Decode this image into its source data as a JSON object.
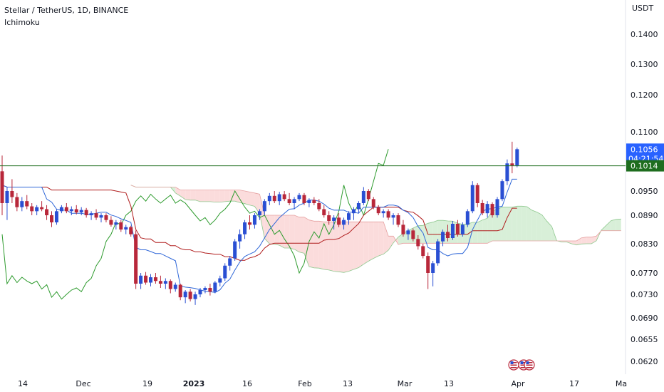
{
  "header": {
    "symbol_line": "Stellar / TetherUS, 1D, BINANCE",
    "indicator": "Ichimoku"
  },
  "colors": {
    "up": "#2a4fd3",
    "down": "#b8273a",
    "tenkan": "#2f67d8",
    "kijun": "#b01c1c",
    "chikou": "#2e9b2e",
    "cloud_bull": "#d8efd8",
    "cloud_bear": "#fbdcdc",
    "hline": "#1e6d1e",
    "current_box": "#2962ff",
    "level_box": "#1e6d1e"
  },
  "chart_data": {
    "type": "candlestick",
    "currency_label": "USDT",
    "y_ticks": [
      "0.1400",
      "0.1300",
      "0.1200",
      "0.1100",
      "0.0950",
      "0.0890",
      "0.0830",
      "0.0770",
      "0.0730",
      "0.0690",
      "0.0655",
      "0.0620"
    ],
    "x_ticks": [
      {
        "label": "14",
        "bold": false
      },
      {
        "label": "Dec",
        "bold": false
      },
      {
        "label": "19",
        "bold": false
      },
      {
        "label": "2023",
        "bold": true
      },
      {
        "label": "16",
        "bold": false
      },
      {
        "label": "Feb",
        "bold": false
      },
      {
        "label": "13",
        "bold": false
      },
      {
        "label": "Mar",
        "bold": false
      },
      {
        "label": "13",
        "bold": false
      },
      {
        "label": "Apr",
        "bold": false
      },
      {
        "label": "17",
        "bold": false
      },
      {
        "label": "Ma",
        "bold": false
      }
    ],
    "current_price": "0.1056",
    "countdown": "04:21:54",
    "level_price": "0.1014",
    "candles": [
      [
        0.1,
        0.104,
        0.089,
        0.092
      ],
      [
        0.092,
        0.096,
        0.088,
        0.095
      ],
      [
        0.095,
        0.098,
        0.092,
        0.0935
      ],
      [
        0.0935,
        0.0945,
        0.09,
        0.091
      ],
      [
        0.091,
        0.0935,
        0.09,
        0.0925
      ],
      [
        0.0925,
        0.094,
        0.0905,
        0.0912
      ],
      [
        0.0912,
        0.092,
        0.089,
        0.09
      ],
      [
        0.09,
        0.0915,
        0.089,
        0.091
      ],
      [
        0.091,
        0.0925,
        0.09,
        0.0905
      ],
      [
        0.0905,
        0.0915,
        0.088,
        0.089
      ],
      [
        0.089,
        0.09,
        0.0865,
        0.0875
      ],
      [
        0.0875,
        0.0905,
        0.087,
        0.09
      ],
      [
        0.09,
        0.0915,
        0.0895,
        0.091
      ],
      [
        0.091,
        0.092,
        0.0895,
        0.09
      ],
      [
        0.09,
        0.0912,
        0.089,
        0.0905
      ],
      [
        0.0905,
        0.0915,
        0.0892,
        0.0897
      ],
      [
        0.0897,
        0.091,
        0.089,
        0.0903
      ],
      [
        0.0903,
        0.0908,
        0.0885,
        0.089
      ],
      [
        0.089,
        0.09,
        0.088,
        0.0895
      ],
      [
        0.0895,
        0.0905,
        0.088,
        0.0885
      ],
      [
        0.0885,
        0.0895,
        0.0875,
        0.089
      ],
      [
        0.089,
        0.0895,
        0.0875,
        0.088
      ],
      [
        0.088,
        0.0888,
        0.0866,
        0.087
      ],
      [
        0.087,
        0.088,
        0.086,
        0.0875
      ],
      [
        0.0875,
        0.088,
        0.0855,
        0.086
      ],
      [
        0.086,
        0.087,
        0.085,
        0.0865
      ],
      [
        0.0865,
        0.0868,
        0.0845,
        0.085
      ],
      [
        0.085,
        0.0858,
        0.074,
        0.075
      ],
      [
        0.075,
        0.077,
        0.074,
        0.0765
      ],
      [
        0.0765,
        0.0772,
        0.0748,
        0.0752
      ],
      [
        0.0752,
        0.0768,
        0.0745,
        0.0762
      ],
      [
        0.0762,
        0.077,
        0.075,
        0.0755
      ],
      [
        0.0755,
        0.0765,
        0.0742,
        0.075
      ],
      [
        0.075,
        0.076,
        0.074,
        0.0755
      ],
      [
        0.0755,
        0.0758,
        0.0732,
        0.074
      ],
      [
        0.074,
        0.0752,
        0.0735,
        0.0748
      ],
      [
        0.0748,
        0.075,
        0.072,
        0.0725
      ],
      [
        0.0725,
        0.0738,
        0.0715,
        0.0735
      ],
      [
        0.0735,
        0.074,
        0.0718,
        0.0722
      ],
      [
        0.0722,
        0.0735,
        0.0712,
        0.073
      ],
      [
        0.073,
        0.0742,
        0.0725,
        0.0738
      ],
      [
        0.0738,
        0.0745,
        0.0732,
        0.0742
      ],
      [
        0.0742,
        0.075,
        0.0728,
        0.0735
      ],
      [
        0.0735,
        0.0755,
        0.0732,
        0.0752
      ],
      [
        0.0752,
        0.0765,
        0.0745,
        0.076
      ],
      [
        0.076,
        0.079,
        0.0755,
        0.0785
      ],
      [
        0.0785,
        0.0805,
        0.0775,
        0.08
      ],
      [
        0.08,
        0.084,
        0.0795,
        0.0835
      ],
      [
        0.0835,
        0.086,
        0.082,
        0.085
      ],
      [
        0.085,
        0.088,
        0.084,
        0.0875
      ],
      [
        0.0875,
        0.089,
        0.086,
        0.087
      ],
      [
        0.087,
        0.0895,
        0.0862,
        0.089
      ],
      [
        0.089,
        0.0905,
        0.088,
        0.09
      ],
      [
        0.09,
        0.093,
        0.089,
        0.0925
      ],
      [
        0.0925,
        0.0945,
        0.0915,
        0.0938
      ],
      [
        0.0938,
        0.095,
        0.092,
        0.0925
      ],
      [
        0.0925,
        0.0948,
        0.0915,
        0.0942
      ],
      [
        0.0942,
        0.095,
        0.0925,
        0.093
      ],
      [
        0.093,
        0.0945,
        0.0915,
        0.092
      ],
      [
        0.092,
        0.0935,
        0.0905,
        0.093
      ],
      [
        0.093,
        0.0945,
        0.0925,
        0.094
      ],
      [
        0.094,
        0.0945,
        0.0915,
        0.092
      ],
      [
        0.092,
        0.0932,
        0.091,
        0.0928
      ],
      [
        0.0928,
        0.0935,
        0.0915,
        0.092
      ],
      [
        0.092,
        0.093,
        0.09,
        0.0905
      ],
      [
        0.0905,
        0.0915,
        0.0885,
        0.089
      ],
      [
        0.089,
        0.09,
        0.087,
        0.0878
      ],
      [
        0.0878,
        0.089,
        0.086,
        0.0885
      ],
      [
        0.0885,
        0.0895,
        0.0865,
        0.087
      ],
      [
        0.087,
        0.0885,
        0.086,
        0.088
      ],
      [
        0.088,
        0.09,
        0.087,
        0.0895
      ],
      [
        0.0895,
        0.091,
        0.088,
        0.0905
      ],
      [
        0.0905,
        0.0925,
        0.0895,
        0.092
      ],
      [
        0.092,
        0.096,
        0.0915,
        0.095
      ],
      [
        0.095,
        0.0955,
        0.0925,
        0.093
      ],
      [
        0.093,
        0.0935,
        0.0905,
        0.091
      ],
      [
        0.091,
        0.0915,
        0.089,
        0.0895
      ],
      [
        0.0895,
        0.0905,
        0.0885,
        0.09
      ],
      [
        0.09,
        0.0905,
        0.088,
        0.0885
      ],
      [
        0.0885,
        0.0895,
        0.087,
        0.089
      ],
      [
        0.089,
        0.0895,
        0.0865,
        0.087
      ],
      [
        0.087,
        0.088,
        0.0845,
        0.085
      ],
      [
        0.085,
        0.0862,
        0.0838,
        0.0858
      ],
      [
        0.0858,
        0.0862,
        0.0835,
        0.084
      ],
      [
        0.084,
        0.0848,
        0.0818,
        0.0825
      ],
      [
        0.0825,
        0.083,
        0.08,
        0.0805
      ],
      [
        0.0805,
        0.0812,
        0.074,
        0.077
      ],
      [
        0.077,
        0.0795,
        0.0745,
        0.079
      ],
      [
        0.079,
        0.084,
        0.0785,
        0.0835
      ],
      [
        0.0835,
        0.086,
        0.0825,
        0.0855
      ],
      [
        0.0855,
        0.087,
        0.0835,
        0.0842
      ],
      [
        0.0842,
        0.0878,
        0.0838,
        0.0872
      ],
      [
        0.0872,
        0.088,
        0.0845,
        0.085
      ],
      [
        0.085,
        0.0875,
        0.0845,
        0.087
      ],
      [
        0.087,
        0.0905,
        0.0865,
        0.09
      ],
      [
        0.09,
        0.0975,
        0.0895,
        0.0965
      ],
      [
        0.0965,
        0.097,
        0.091,
        0.092
      ],
      [
        0.092,
        0.0928,
        0.089,
        0.0895
      ],
      [
        0.0895,
        0.0925,
        0.0885,
        0.0918
      ],
      [
        0.0918,
        0.0922,
        0.0885,
        0.089
      ],
      [
        0.089,
        0.0935,
        0.0885,
        0.093
      ],
      [
        0.093,
        0.098,
        0.0925,
        0.0975
      ],
      [
        0.0975,
        0.103,
        0.0965,
        0.102
      ],
      [
        0.102,
        0.1075,
        0.0995,
        0.1015
      ],
      [
        0.1015,
        0.106,
        0.101,
        0.1056
      ]
    ]
  }
}
